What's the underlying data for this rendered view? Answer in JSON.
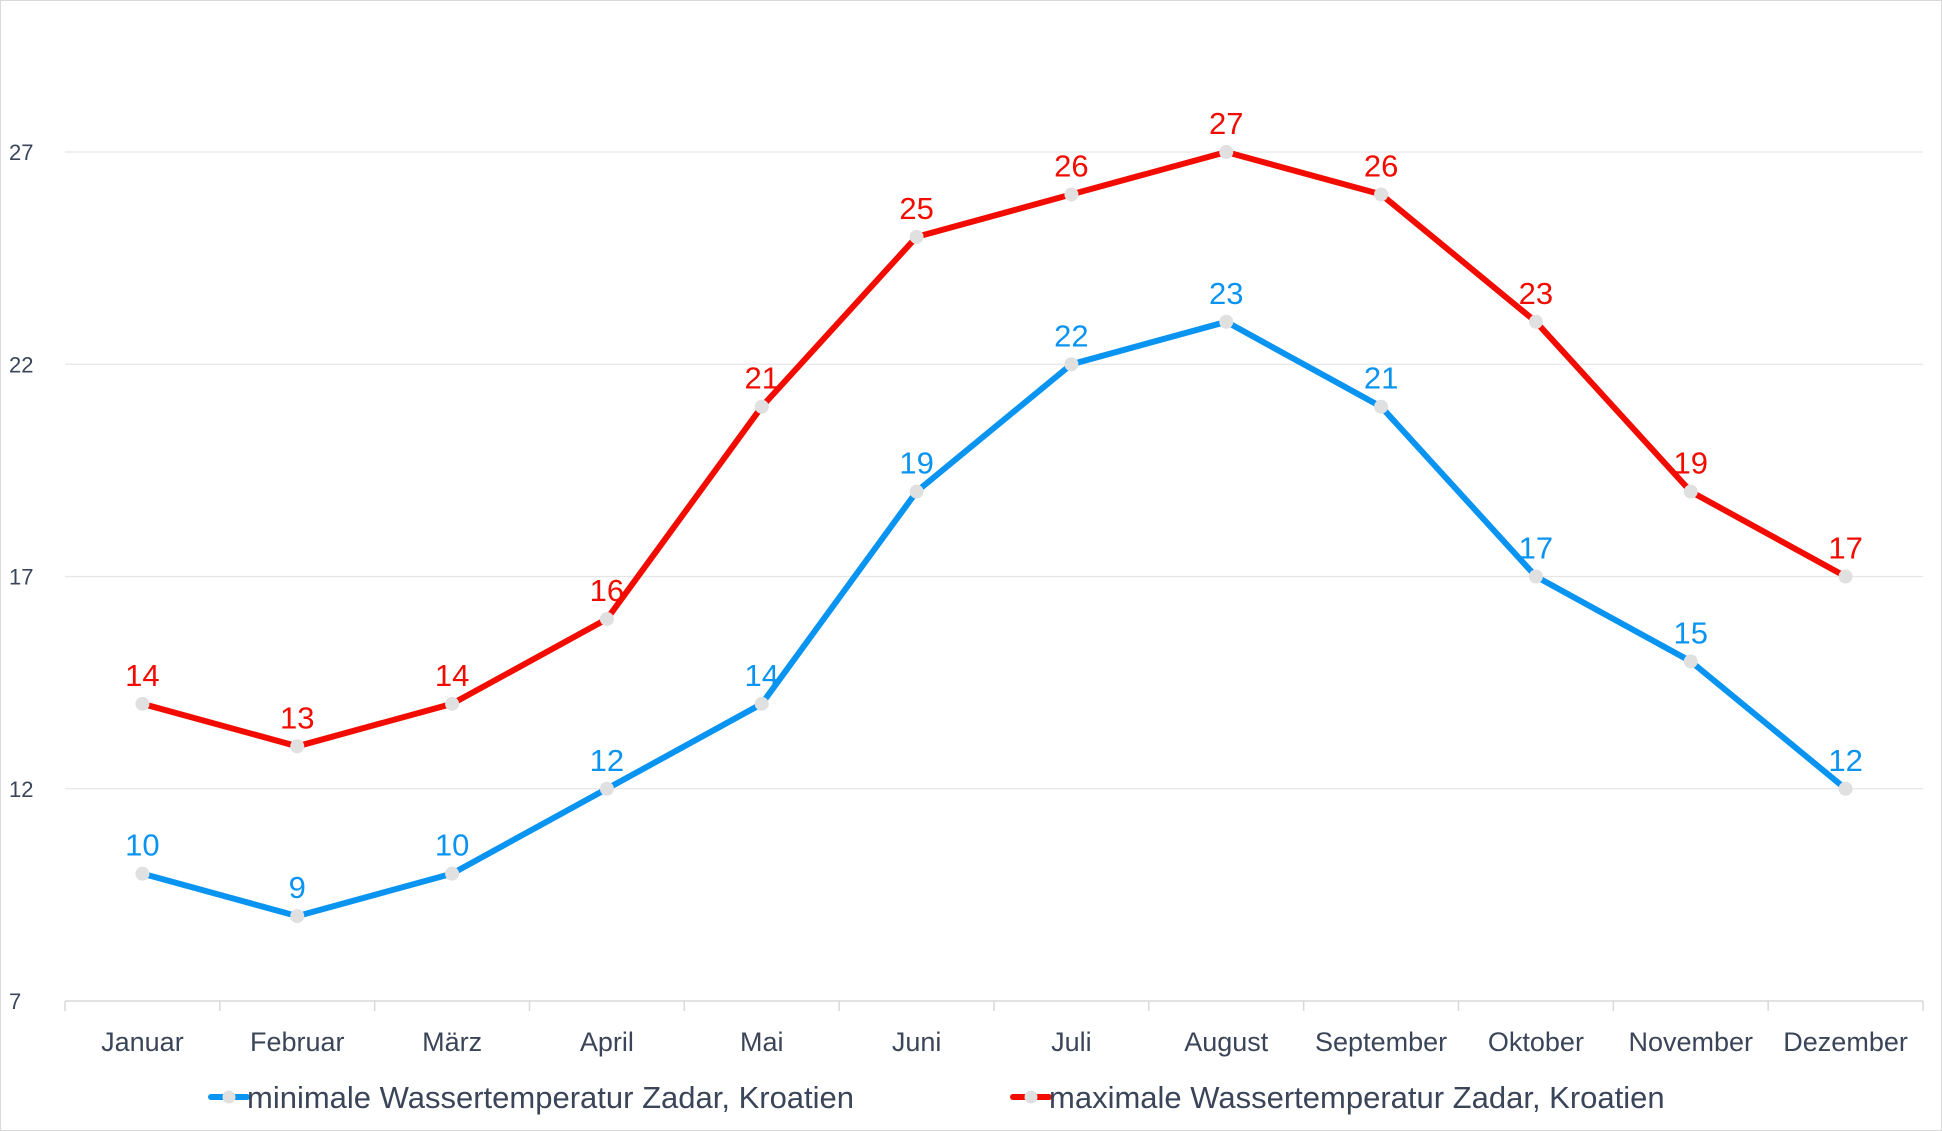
{
  "chart_data": {
    "type": "line",
    "categories": [
      "Januar",
      "Februar",
      "März",
      "April",
      "Mai",
      "Juni",
      "Juli",
      "August",
      "September",
      "Oktober",
      "November",
      "Dezember"
    ],
    "series": [
      {
        "name": "minimale Wassertemperatur Zadar, Kroatien",
        "color": "#0a94f2",
        "values": [
          10,
          9,
          10,
          12,
          14,
          19,
          22,
          23,
          21,
          17,
          15,
          12
        ]
      },
      {
        "name": "maximale Wassertemperatur Zadar, Kroatien",
        "color": "#f20c00",
        "values": [
          14,
          13,
          14,
          16,
          21,
          25,
          26,
          27,
          26,
          23,
          19,
          17
        ]
      }
    ],
    "ylim": [
      7,
      29
    ],
    "yticks": [
      7,
      12,
      17,
      22,
      27
    ],
    "grid": true,
    "legend": "bottom",
    "marker_color": "#e0e0e0",
    "title": "",
    "xlabel": "",
    "ylabel": ""
  }
}
